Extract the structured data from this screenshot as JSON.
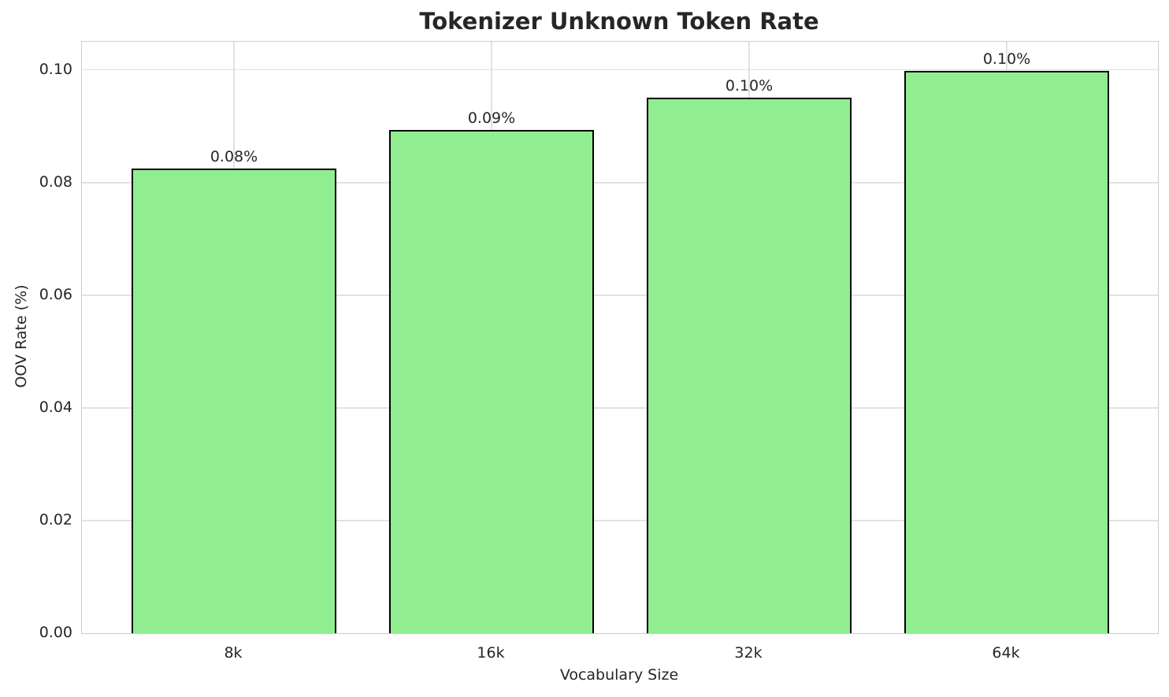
{
  "chart_data": {
    "type": "bar",
    "title": "Tokenizer Unknown Token Rate",
    "xlabel": "Vocabulary Size",
    "ylabel": "OOV Rate (%)",
    "categories": [
      "8k",
      "16k",
      "32k",
      "64k"
    ],
    "values": [
      0.0825,
      0.0893,
      0.0951,
      0.0998
    ],
    "bar_labels": [
      "0.08%",
      "0.09%",
      "0.10%",
      "0.10%"
    ],
    "ytick_values": [
      0.0,
      0.02,
      0.04,
      0.06,
      0.08,
      0.1
    ],
    "ytick_labels": [
      "0.00",
      "0.02",
      "0.04",
      "0.06",
      "0.08",
      "0.10"
    ],
    "ylim": [
      0,
      0.105
    ],
    "grid": true,
    "legend_position": "none",
    "colors": {
      "bar_fill": "#90EE90",
      "bar_edge": "#000000",
      "grid": "#e2e2e2",
      "spine": "#cccccc",
      "text": "#262626",
      "background": "#ffffff"
    }
  }
}
